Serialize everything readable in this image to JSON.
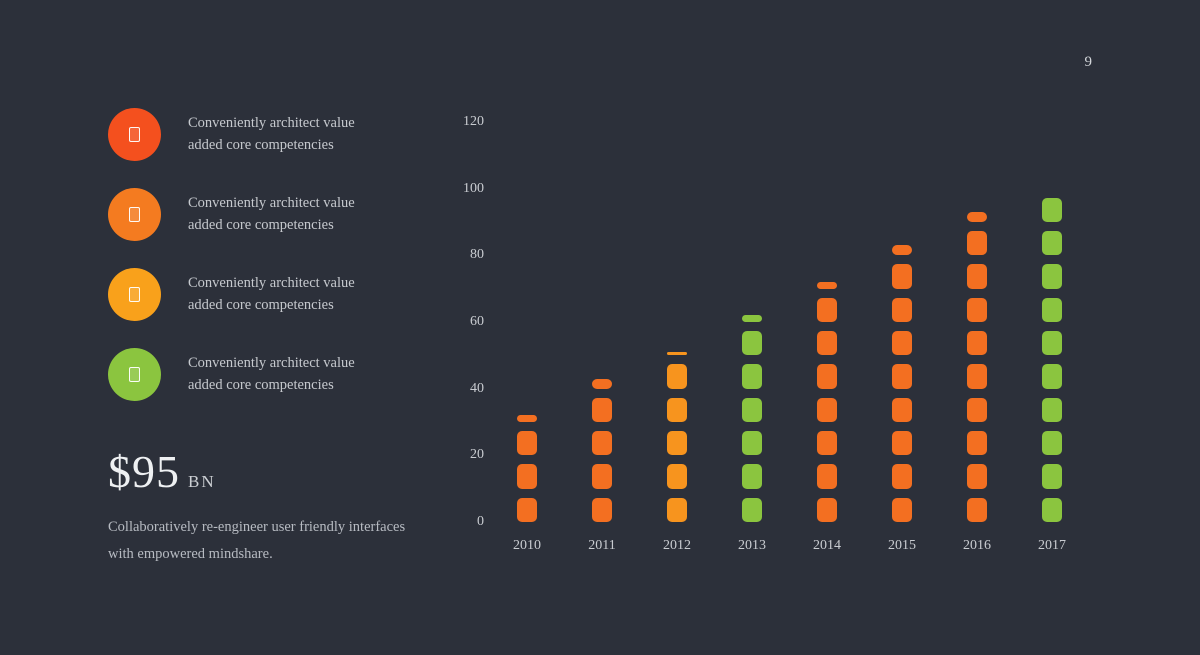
{
  "page": {
    "number": "9",
    "background": "#2c303a"
  },
  "legend": {
    "items": [
      {
        "icon": "placeholder-glyph",
        "color": "#f4501e",
        "text": "Conveniently architect value added core competencies"
      },
      {
        "icon": "placeholder-glyph",
        "color": "#f47b20",
        "text": "Conveniently architect value added core competencies"
      },
      {
        "icon": "placeholder-glyph",
        "color": "#f9a11b",
        "text": "Conveniently architect value added core competencies"
      },
      {
        "icon": "placeholder-glyph",
        "color": "#8bc53f",
        "text": "Conveniently architect value added core competencies"
      }
    ]
  },
  "stat": {
    "value": "$95",
    "unit": "BN"
  },
  "description": "Collaboratively re-engineer user friendly interfaces with empowered mindshare.",
  "chart_data": {
    "type": "bar",
    "title": "",
    "xlabel": "",
    "ylabel": "",
    "categories": [
      "2010",
      "2011",
      "2012",
      "2013",
      "2014",
      "2015",
      "2016",
      "2017"
    ],
    "values": [
      32,
      43,
      51,
      62,
      72,
      83,
      93,
      100
    ],
    "colors": [
      "#f36f21",
      "#f36f21",
      "#f7941e",
      "#8bc53f",
      "#f36f21",
      "#f36f21",
      "#f36f21",
      "#8bc53f"
    ],
    "ylim": [
      0,
      120
    ],
    "yticks": [
      0,
      20,
      40,
      60,
      80,
      100,
      120
    ],
    "grid": false,
    "legend_position": "none",
    "bar_style": "segmented-rounded-dashes",
    "segment_unit": 10
  }
}
